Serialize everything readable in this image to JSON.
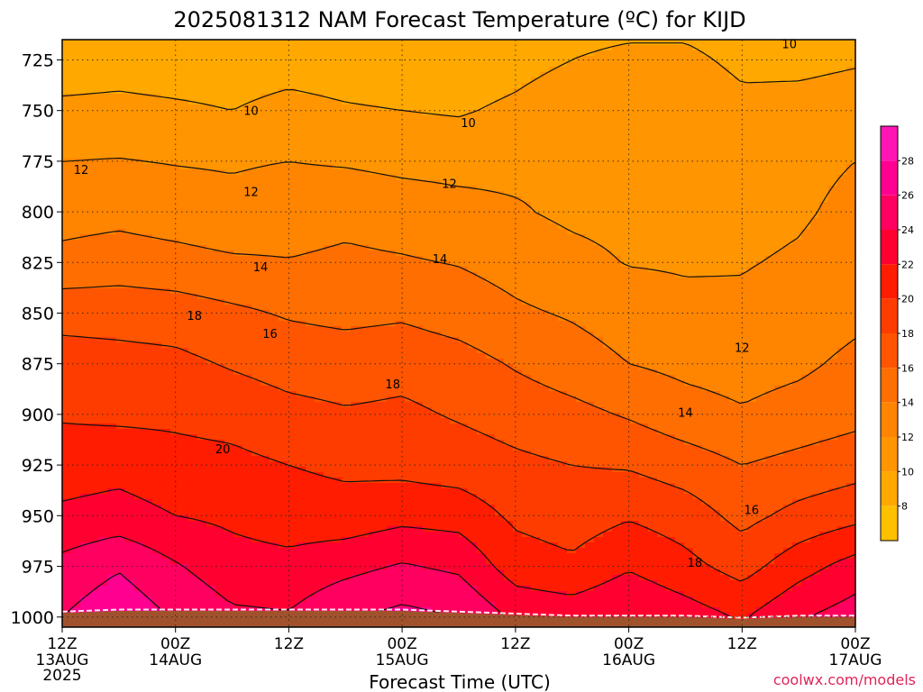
{
  "chart_data": {
    "type": "heatmap",
    "title": "2025081312 NAM Forecast Temperature (ºC) for KIJD",
    "xlabel": "Forecast Time (UTC)",
    "ylabel": "",
    "credit": "coolwx.com/models",
    "y_axis": {
      "range": [
        715,
        1005
      ],
      "inverted": true,
      "ticks": [
        725,
        750,
        775,
        800,
        825,
        850,
        875,
        900,
        925,
        950,
        975,
        1000
      ]
    },
    "x_axis": {
      "range_hours": [
        0,
        84
      ],
      "ticks": [
        {
          "hour": 0,
          "top": "12Z",
          "mid": "13AUG",
          "low": "2025"
        },
        {
          "hour": 12,
          "top": "00Z",
          "mid": "14AUG",
          "low": ""
        },
        {
          "hour": 24,
          "top": "12Z",
          "mid": "",
          "low": ""
        },
        {
          "hour": 36,
          "top": "00Z",
          "mid": "15AUG",
          "low": ""
        },
        {
          "hour": 48,
          "top": "12Z",
          "mid": "",
          "low": ""
        },
        {
          "hour": 60,
          "top": "00Z",
          "mid": "16AUG",
          "low": ""
        },
        {
          "hour": 72,
          "top": "12Z",
          "mid": "",
          "low": ""
        },
        {
          "hour": 84,
          "top": "00Z",
          "mid": "17AUG",
          "low": ""
        }
      ]
    },
    "colorbar": {
      "levels": [
        6,
        8,
        10,
        12,
        14,
        16,
        18,
        20,
        22,
        24,
        26,
        28,
        30
      ],
      "colors": [
        "#ffc000",
        "#ffa800",
        "#ff9500",
        "#ff8400",
        "#ff6e00",
        "#ff5500",
        "#ff3c00",
        "#ff1c00",
        "#ff0030",
        "#ff0060",
        "#ff0090",
        "#ff14b4"
      ],
      "tick_labels": [
        8,
        10,
        12,
        14,
        16,
        18,
        20,
        22,
        24,
        26,
        28
      ]
    },
    "contour_interval": 2,
    "contour_labels": [
      {
        "value": "10",
        "hour": 20,
        "p": 750
      },
      {
        "value": "10",
        "hour": 43,
        "p": 756
      },
      {
        "value": "10",
        "hour": 77,
        "p": 717
      },
      {
        "value": "12",
        "hour": 2,
        "p": 779
      },
      {
        "value": "12",
        "hour": 20,
        "p": 790
      },
      {
        "value": "12",
        "hour": 41,
        "p": 786
      },
      {
        "value": "12",
        "hour": 72,
        "p": 867
      },
      {
        "value": "14",
        "hour": 21,
        "p": 827
      },
      {
        "value": "14",
        "hour": 40,
        "p": 823
      },
      {
        "value": "14",
        "hour": 66,
        "p": 899
      },
      {
        "value": "16",
        "hour": 22,
        "p": 860
      },
      {
        "value": "16",
        "hour": 73,
        "p": 947
      },
      {
        "value": "18",
        "hour": 14,
        "p": 851
      },
      {
        "value": "18",
        "hour": 35,
        "p": 885
      },
      {
        "value": "18",
        "hour": 67,
        "p": 973
      },
      {
        "value": "20",
        "hour": 17,
        "p": 917
      }
    ],
    "temperature_grid": {
      "hours": [
        0,
        6,
        12,
        18,
        24,
        30,
        36,
        42,
        48,
        54,
        60,
        66,
        72,
        78,
        84
      ],
      "levels": [
        700,
        725,
        750,
        775,
        800,
        825,
        850,
        875,
        900,
        925,
        950,
        975,
        1000,
        1010
      ],
      "values": [
        [
          8.5,
          8.5,
          8.5,
          8.5,
          8.5,
          8.5,
          8.0,
          8.0,
          8.5,
          9.0,
          9.0,
          9.0,
          8.5,
          8.5,
          9.0
        ],
        [
          9.0,
          9.2,
          9.0,
          9.0,
          9.2,
          9.0,
          8.8,
          8.8,
          9.3,
          10.0,
          10.5,
          10.5,
          9.5,
          9.5,
          9.8
        ],
        [
          10.4,
          10.5,
          10.3,
          10.0,
          10.6,
          10.2,
          10.0,
          9.8,
          10.4,
          11.3,
          11.8,
          11.7,
          10.6,
          10.7,
          11.0
        ],
        [
          12.0,
          12.1,
          11.9,
          11.8,
          12.0,
          11.8,
          11.5,
          11.4,
          11.5,
          11.8,
          11.8,
          11.7,
          11.4,
          11.6,
          12.0
        ],
        [
          13.2,
          13.4,
          13.0,
          12.6,
          13.0,
          13.4,
          13.0,
          12.6,
          12.2,
          11.6,
          11.4,
          11.6,
          11.5,
          11.8,
          12.4
        ],
        [
          14.6,
          15.0,
          14.7,
          14.3,
          14.1,
          14.4,
          14.2,
          13.9,
          13.3,
          12.6,
          11.9,
          11.8,
          11.9,
          12.2,
          12.8
        ],
        [
          17.3,
          17.2,
          17.0,
          16.4,
          15.8,
          15.5,
          15.7,
          15.1,
          14.3,
          13.8,
          13.1,
          12.5,
          12.3,
          12.8,
          13.5
        ],
        [
          18.9,
          18.7,
          18.5,
          17.8,
          17.2,
          17.0,
          17.3,
          16.8,
          15.8,
          14.9,
          14.0,
          13.5,
          13.2,
          13.6,
          14.5
        ],
        [
          19.8,
          19.6,
          19.6,
          19.3,
          18.6,
          18.2,
          18.4,
          17.8,
          17.2,
          16.6,
          15.8,
          14.8,
          14.2,
          14.8,
          15.4
        ],
        [
          21.0,
          21.3,
          20.7,
          20.5,
          20.0,
          19.6,
          19.4,
          19.0,
          18.4,
          18.0,
          17.8,
          17.0,
          16.0,
          16.6,
          17.2
        ],
        [
          22.4,
          22.8,
          22.0,
          21.6,
          21.0,
          20.8,
          21.4,
          21.2,
          19.6,
          19.0,
          19.8,
          19.0,
          17.4,
          18.6,
          19.4
        ],
        [
          24.6,
          25.8,
          24.2,
          22.8,
          22.6,
          23.4,
          24.2,
          23.6,
          21.0,
          20.4,
          21.8,
          20.6,
          19.2,
          21.2,
          22.8
        ],
        [
          26.0,
          27.5,
          25.8,
          24.4,
          24.2,
          25.8,
          26.6,
          26.0,
          23.6,
          23.2,
          24.0,
          23.0,
          21.8,
          23.8,
          25.0
        ],
        [
          26.0,
          27.5,
          25.8,
          24.4,
          24.2,
          25.8,
          26.6,
          26.0,
          23.6,
          23.2,
          24.0,
          23.0,
          21.8,
          23.8,
          25.0
        ]
      ]
    },
    "surface_pressure": {
      "hours": [
        0,
        6,
        12,
        18,
        24,
        30,
        36,
        42,
        48,
        54,
        60,
        66,
        72,
        78,
        84
      ],
      "p": [
        998,
        997,
        997,
        997,
        997,
        997,
        997,
        998,
        999,
        1000,
        1000,
        1000,
        1001,
        1000,
        1000
      ]
    }
  }
}
